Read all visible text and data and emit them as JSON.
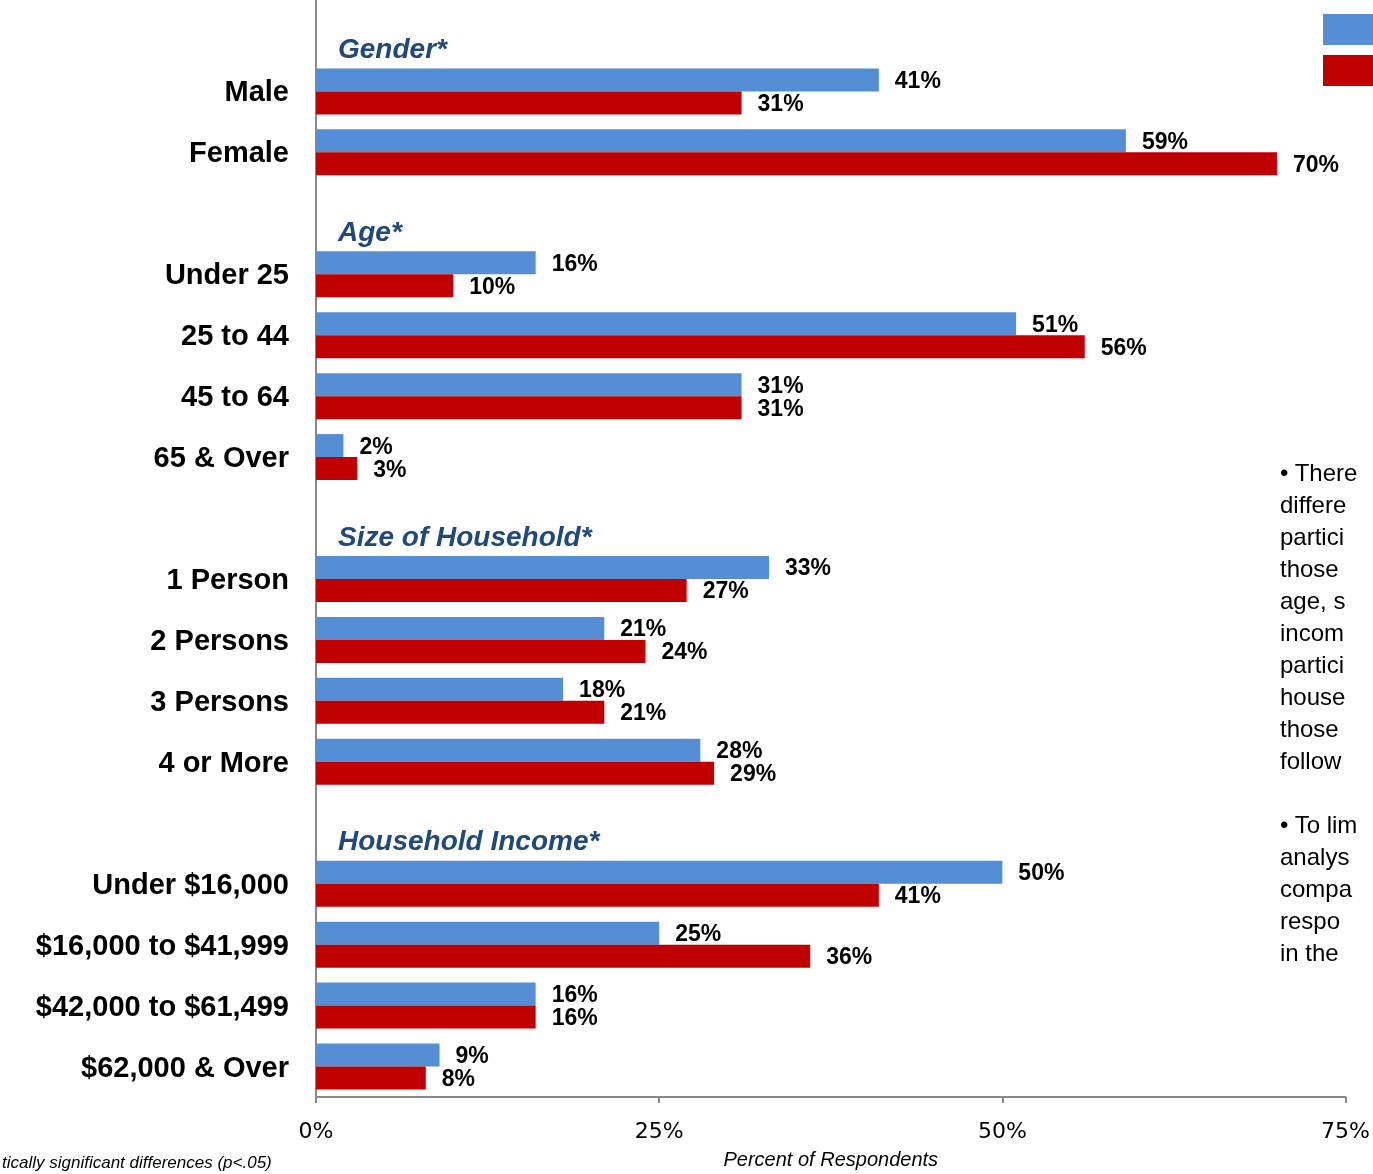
{
  "chart_data": {
    "type": "bar",
    "orientation": "horizontal",
    "categories": [
      "Gender*",
      "Male",
      "Female",
      "Age*",
      "Under 25",
      "25 to 44",
      "45 to 64",
      "65 & Over",
      "Size of Household*",
      "1 Person",
      "2 Persons",
      "3 Persons",
      "4 or More",
      "Household Income*",
      "Under $16,000",
      "$16,000 to $41,999",
      "$42,000 to $61,499",
      "$62,000 & Over"
    ],
    "series": [
      {
        "color": "#558ed5",
        "values": [
          null,
          41,
          59,
          null,
          16,
          51,
          31,
          2,
          null,
          33,
          21,
          18,
          28,
          null,
          50,
          25,
          16,
          9
        ],
        "value_labels": [
          null,
          "41%",
          "59%",
          null,
          "16%",
          "51%",
          "31%",
          "2%",
          null,
          "33%",
          "21%",
          "18%",
          "28%",
          null,
          "50%",
          "25%",
          "16%",
          "9%"
        ]
      },
      {
        "color": "#c00000",
        "values": [
          null,
          31,
          70,
          null,
          10,
          56,
          31,
          3,
          null,
          27,
          24,
          21,
          29,
          null,
          41,
          36,
          16,
          8
        ],
        "value_labels": [
          null,
          "31%",
          "70%",
          null,
          "10%",
          "56%",
          "31%",
          "3%",
          null,
          "27%",
          "24%",
          "21%",
          "29%",
          null,
          "41%",
          "36%",
          "16%",
          "8%"
        ]
      }
    ],
    "xlim": [
      0,
      75
    ],
    "xticks": [
      {
        "value": 0,
        "label": "0%"
      },
      {
        "value": 25,
        "label": "25%"
      },
      {
        "value": 50,
        "label": "50%"
      },
      {
        "value": 75,
        "label": "75%"
      }
    ],
    "xlabel": "Percent of Respondents",
    "grid": false,
    "annotations": [
      "• There\ndiffere\npartici\nthose\nage, s\nincom\npartici\nhouse\nthose\nfollow",
      "• To lim\nanalys\ncompa\nrespo\nin the",
      "tically significant differences (p<.05)"
    ]
  }
}
